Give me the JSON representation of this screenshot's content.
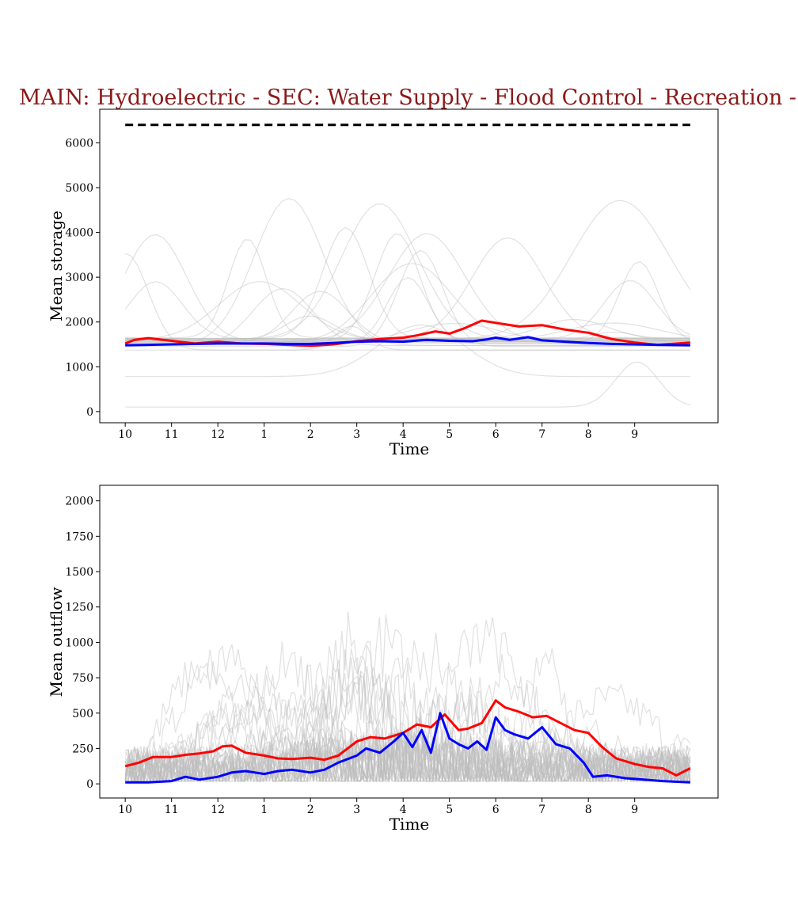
{
  "title": "MAIN: Hydroelectric - SEC: Water Supply - Flood Control - Recreation -",
  "colors": {
    "title": "#8b1a1a",
    "mean_line": "#ff0000",
    "median_line": "#0000ff",
    "ensemble_lines": "#bdbdbd",
    "capacity_line": "#000000"
  },
  "chart_data": [
    {
      "type": "line",
      "title": "",
      "xlabel": "Time",
      "ylabel": "Mean storage",
      "x_ticks": [
        "10",
        "11",
        "12",
        "1",
        "2",
        "3",
        "4",
        "5",
        "6",
        "7",
        "8",
        "9"
      ],
      "x_tick_positions": [
        0,
        1,
        2,
        3,
        4,
        5,
        6,
        7,
        8,
        9,
        10,
        11
      ],
      "xlim": [
        -0.55,
        12.8
      ],
      "ylim": [
        -250,
        6750
      ],
      "y_ticks": [
        0,
        1000,
        2000,
        3000,
        4000,
        5000,
        6000
      ],
      "grid": false,
      "reference_lines": [
        {
          "style": "dashed",
          "color": "#000000",
          "y": 6400,
          "x": [
            0,
            12.2
          ]
        }
      ],
      "series": [
        {
          "color": "#ff0000",
          "x": [
            0,
            0.2,
            0.5,
            1,
            1.5,
            2,
            2.5,
            3,
            3.5,
            4,
            4.5,
            5,
            5.5,
            6,
            6.3,
            6.7,
            7,
            7.3,
            7.7,
            8,
            8.5,
            9,
            9.5,
            10,
            10.5,
            11,
            11.5,
            12.2
          ],
          "y": [
            1520,
            1600,
            1640,
            1580,
            1520,
            1560,
            1520,
            1510,
            1490,
            1470,
            1500,
            1570,
            1620,
            1650,
            1700,
            1790,
            1740,
            1850,
            2030,
            1980,
            1900,
            1930,
            1830,
            1760,
            1620,
            1540,
            1490,
            1540
          ]
        },
        {
          "color": "#0000ff",
          "x": [
            0,
            0.5,
            1,
            1.5,
            2,
            2.5,
            3,
            3.5,
            4,
            4.5,
            5,
            5.5,
            6,
            6.5,
            7,
            7.5,
            7.8,
            8,
            8.3,
            8.7,
            9,
            9.5,
            10,
            10.5,
            11,
            11.5,
            12.2
          ],
          "y": [
            1480,
            1490,
            1500,
            1510,
            1520,
            1520,
            1520,
            1510,
            1510,
            1530,
            1560,
            1570,
            1560,
            1600,
            1580,
            1570,
            1610,
            1650,
            1600,
            1660,
            1590,
            1560,
            1530,
            1510,
            1500,
            1490,
            1480
          ]
        }
      ]
    },
    {
      "type": "line",
      "title": "",
      "xlabel": "Time",
      "ylabel": "Mean outflow",
      "x_ticks": [
        "10",
        "11",
        "12",
        "1",
        "2",
        "3",
        "4",
        "5",
        "6",
        "7",
        "8",
        "9"
      ],
      "x_tick_positions": [
        0,
        1,
        2,
        3,
        4,
        5,
        6,
        7,
        8,
        9,
        10,
        11
      ],
      "xlim": [
        -0.55,
        12.8
      ],
      "ylim": [
        -100,
        2110
      ],
      "y_ticks": [
        0,
        250,
        500,
        750,
        1000,
        1250,
        1500,
        1750,
        2000
      ],
      "grid": false,
      "series": [
        {
          "color": "#ff0000",
          "x": [
            0,
            0.3,
            0.6,
            1,
            1.3,
            1.6,
            1.9,
            2.1,
            2.3,
            2.6,
            3,
            3.3,
            3.6,
            4,
            4.3,
            4.6,
            5,
            5.3,
            5.6,
            6,
            6.3,
            6.6,
            6.9,
            7.2,
            7.4,
            7.7,
            8,
            8.2,
            8.5,
            8.8,
            9.1,
            9.4,
            9.7,
            10,
            10.3,
            10.6,
            11,
            11.3,
            11.6,
            11.9,
            12.2
          ],
          "y": [
            125,
            150,
            190,
            190,
            205,
            215,
            230,
            265,
            270,
            220,
            200,
            180,
            175,
            185,
            170,
            200,
            300,
            330,
            320,
            360,
            420,
            400,
            490,
            380,
            390,
            430,
            590,
            540,
            510,
            470,
            480,
            430,
            380,
            360,
            260,
            180,
            140,
            120,
            110,
            60,
            110
          ]
        },
        {
          "color": "#0000ff",
          "x": [
            0,
            0.5,
            1,
            1.3,
            1.6,
            2,
            2.3,
            2.6,
            3,
            3.3,
            3.6,
            4,
            4.3,
            4.6,
            5,
            5.2,
            5.5,
            5.8,
            6,
            6.2,
            6.4,
            6.6,
            6.8,
            7,
            7.2,
            7.4,
            7.6,
            7.8,
            8,
            8.2,
            8.4,
            8.7,
            9,
            9.3,
            9.6,
            9.9,
            10.1,
            10.4,
            10.8,
            11.2,
            11.6,
            12.2
          ],
          "y": [
            10,
            10,
            20,
            50,
            30,
            50,
            80,
            90,
            70,
            90,
            100,
            80,
            100,
            150,
            200,
            250,
            220,
            300,
            360,
            260,
            380,
            220,
            500,
            320,
            280,
            250,
            300,
            240,
            470,
            380,
            350,
            320,
            400,
            280,
            250,
            150,
            50,
            60,
            40,
            30,
            20,
            10
          ]
        }
      ]
    }
  ]
}
